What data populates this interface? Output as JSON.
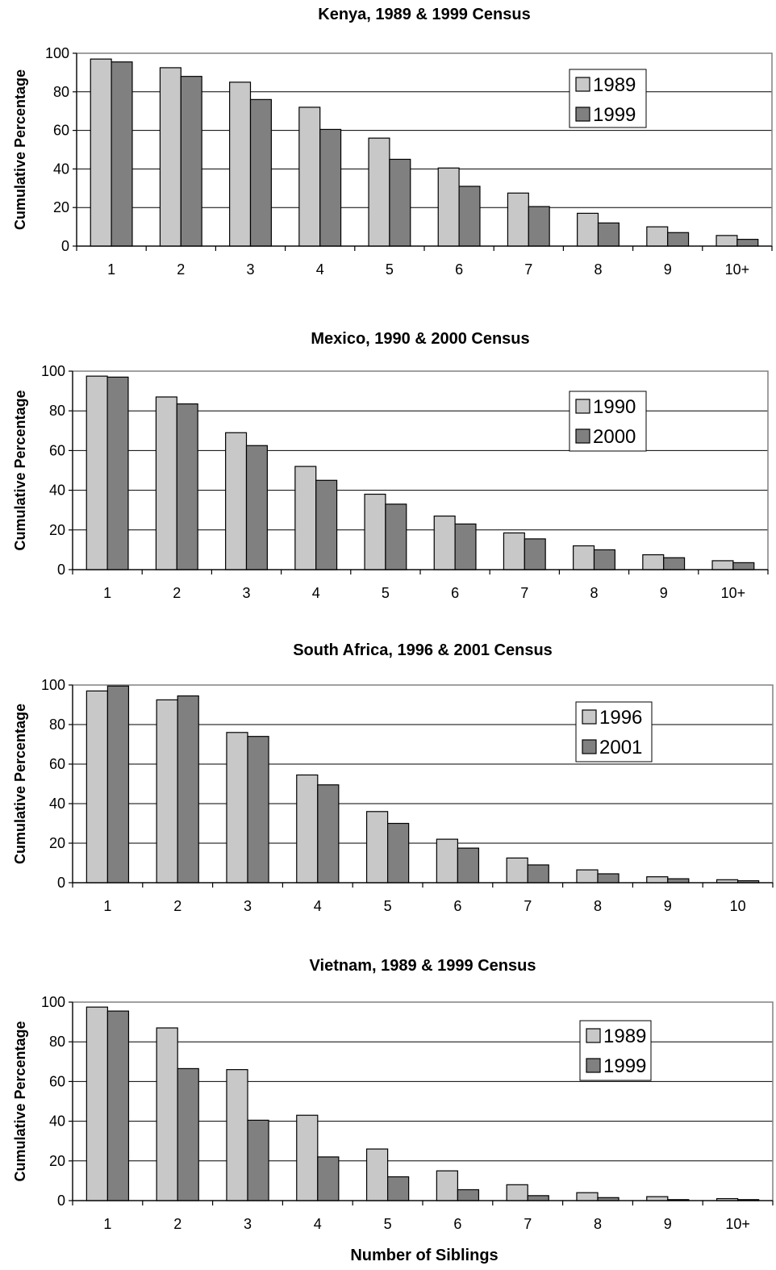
{
  "figure": {
    "xlabel": "Number of Siblings",
    "colors": {
      "series1": "#c8c8c8",
      "series2": "#808080",
      "frame": "#808080",
      "grid": "#000000"
    }
  },
  "chart_data": [
    {
      "type": "bar",
      "title": "Kenya, 1989 & 1999 Census",
      "ylabel": "Cumulative Percentage",
      "xlabel": "",
      "ylim": [
        0,
        100
      ],
      "yticks": [
        0,
        20,
        40,
        60,
        80,
        100
      ],
      "grid": true,
      "legend": "top-right",
      "categories": [
        "1",
        "2",
        "3",
        "4",
        "5",
        "6",
        "7",
        "8",
        "9",
        "10+"
      ],
      "series": [
        {
          "name": "1989",
          "color": "#c8c8c8",
          "values": [
            97,
            92.5,
            85,
            72,
            56,
            40.5,
            27.5,
            17,
            10,
            5.5
          ]
        },
        {
          "name": "1999",
          "color": "#808080",
          "values": [
            95.5,
            88,
            76,
            60.5,
            45,
            31,
            20.5,
            12,
            7,
            3.5
          ]
        }
      ]
    },
    {
      "type": "bar",
      "title": "Mexico, 1990 & 2000 Census",
      "ylabel": "Cumulative Percentage",
      "xlabel": "",
      "ylim": [
        0,
        100
      ],
      "yticks": [
        0,
        20,
        40,
        60,
        80,
        100
      ],
      "grid": true,
      "legend": "top-right",
      "categories": [
        "1",
        "2",
        "3",
        "4",
        "5",
        "6",
        "7",
        "8",
        "9",
        "10+"
      ],
      "series": [
        {
          "name": "1990",
          "color": "#c8c8c8",
          "values": [
            97.5,
            87,
            69,
            52,
            38,
            27,
            18.5,
            12,
            7.5,
            4.5
          ]
        },
        {
          "name": "2000",
          "color": "#808080",
          "values": [
            97,
            83.5,
            62.5,
            45,
            33,
            23,
            15.5,
            10,
            6,
            3.5
          ]
        }
      ]
    },
    {
      "type": "bar",
      "title": "South Africa, 1996 & 2001 Census",
      "ylabel": "Cumulative Percentage",
      "xlabel": "",
      "ylim": [
        0,
        100
      ],
      "yticks": [
        0,
        20,
        40,
        60,
        80,
        100
      ],
      "grid": true,
      "legend": "top-right",
      "categories": [
        "1",
        "2",
        "3",
        "4",
        "5",
        "6",
        "7",
        "8",
        "9",
        "10"
      ],
      "series": [
        {
          "name": "1996",
          "color": "#c8c8c8",
          "values": [
            97,
            92.5,
            76,
            54.5,
            36,
            22,
            12.5,
            6.5,
            3,
            1.5
          ]
        },
        {
          "name": "2001",
          "color": "#808080",
          "values": [
            99.5,
            94.5,
            74,
            49.5,
            30,
            17.5,
            9,
            4.5,
            2,
            1
          ]
        }
      ]
    },
    {
      "type": "bar",
      "title": "Vietnam, 1989 & 1999 Census",
      "ylabel": "Cumulative Percentage",
      "xlabel": "Number of Siblings",
      "ylim": [
        0,
        100
      ],
      "yticks": [
        0,
        20,
        40,
        60,
        80,
        100
      ],
      "grid": true,
      "legend": "top-right",
      "categories": [
        "1",
        "2",
        "3",
        "4",
        "5",
        "6",
        "7",
        "8",
        "9",
        "10+"
      ],
      "series": [
        {
          "name": "1989",
          "color": "#c8c8c8",
          "values": [
            97.5,
            87,
            66,
            43,
            26,
            15,
            8,
            4,
            2,
            1
          ]
        },
        {
          "name": "1999",
          "color": "#808080",
          "values": [
            95.5,
            66.5,
            40.5,
            22,
            12,
            5.5,
            2.5,
            1.5,
            0.5,
            0.5
          ]
        }
      ]
    }
  ]
}
